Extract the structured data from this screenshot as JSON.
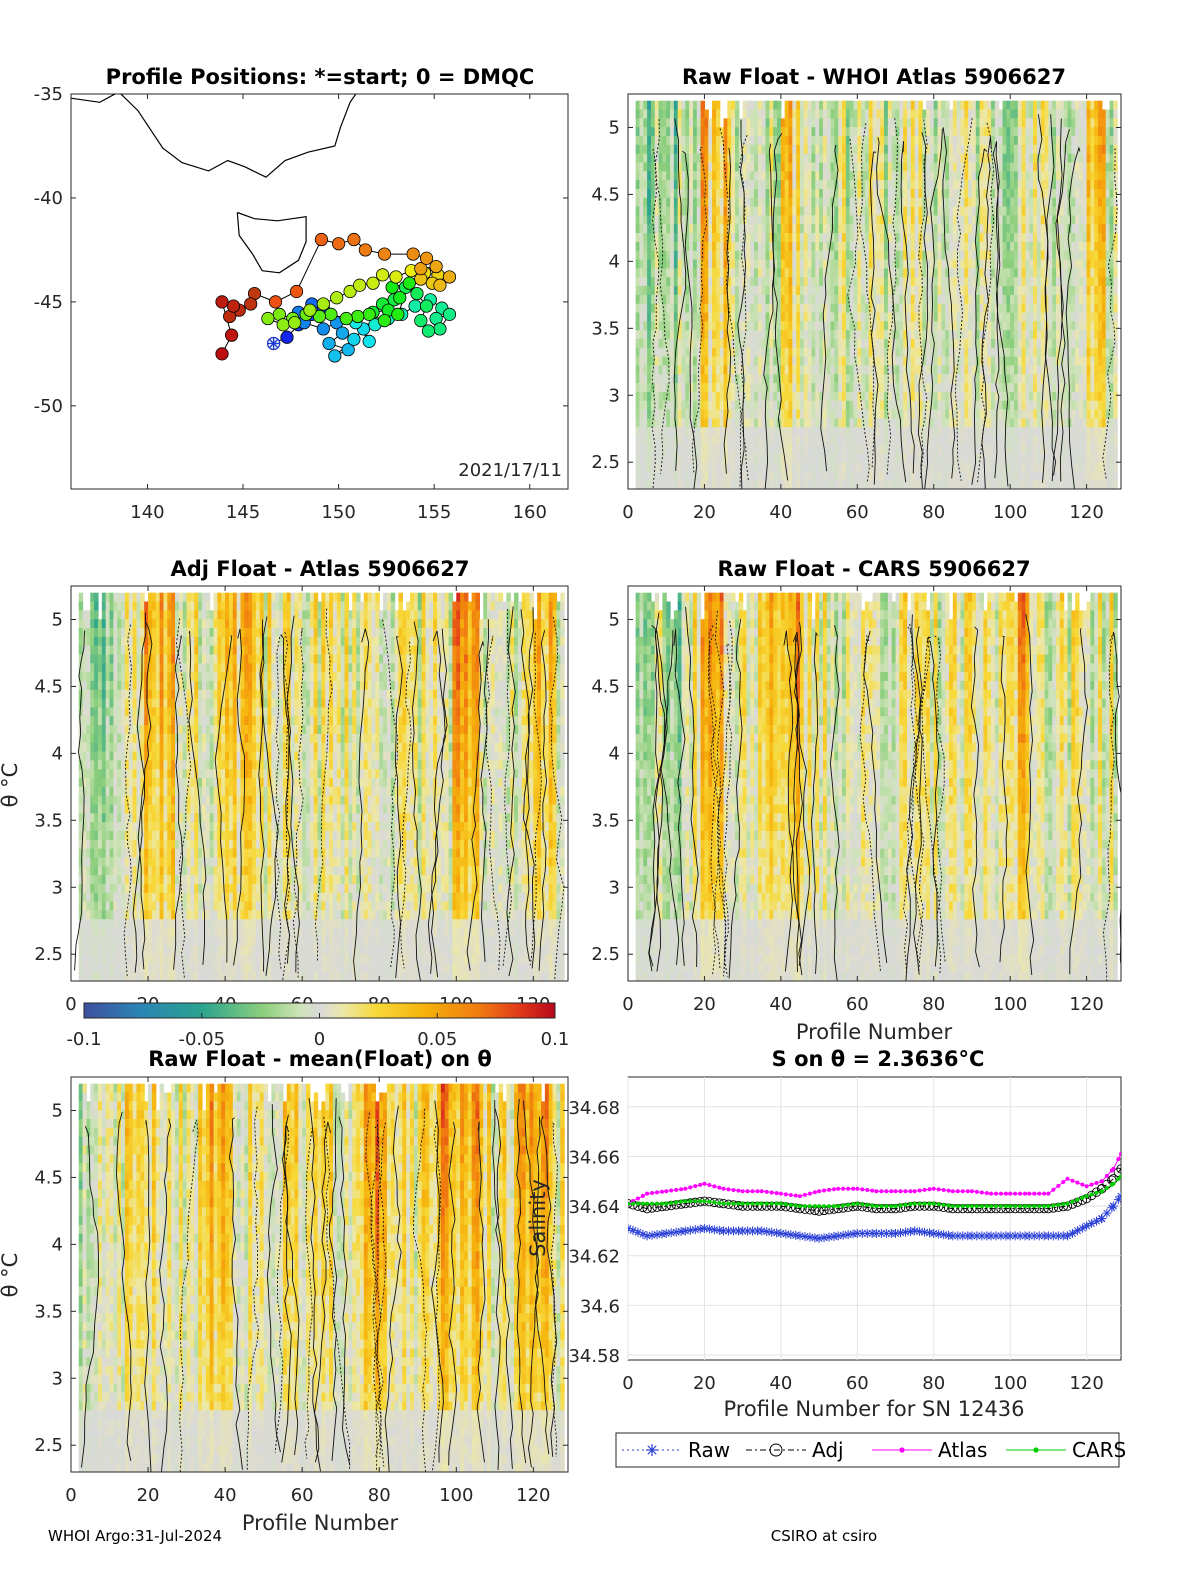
{
  "footer": {
    "left": "WHOI Argo:31-Jul-2024",
    "right": "CSIRO at csiro"
  },
  "colors": {
    "raw": "#2a3fd6",
    "adj": "#000000",
    "atlas": "#ff00ff",
    "cars": "#00cc00",
    "coast": "#000000",
    "axis": "#262626",
    "background": "#ffffff"
  },
  "colorbar": {
    "ticks": [
      "-0.1",
      "-0.05",
      "0",
      "0.05",
      "0.1"
    ],
    "range": [
      -0.1,
      0.1
    ],
    "colormap": "blue-green-gray-yellow-red"
  },
  "chart_data": [
    {
      "id": "map",
      "type": "scatter",
      "title": "Profile Positions: *=start; 0 = DMQC",
      "xticks": [
        "140",
        "145",
        "150",
        "155",
        "160"
      ],
      "yticks": [
        "-35",
        "-40",
        "-45",
        "-50"
      ],
      "xlim": [
        136,
        162
      ],
      "ylim": [
        -54,
        -35
      ],
      "date_label": "2021/17/11",
      "start": {
        "lon": 146.6,
        "lat": -47.0
      },
      "track": [
        {
          "lon": 146.6,
          "lat": -47.0,
          "c": 0.0
        },
        {
          "lon": 147.3,
          "lat": -46.7,
          "c": 0.02
        },
        {
          "lon": 147.9,
          "lat": -46.1,
          "c": 0.04
        },
        {
          "lon": 148.6,
          "lat": -45.6,
          "c": 0.06
        },
        {
          "lon": 149.2,
          "lat": -45.3,
          "c": 0.08
        },
        {
          "lon": 148.6,
          "lat": -45.1,
          "c": 0.1
        },
        {
          "lon": 147.9,
          "lat": -45.5,
          "c": 0.12
        },
        {
          "lon": 148.2,
          "lat": -46.0,
          "c": 0.13
        },
        {
          "lon": 149.2,
          "lat": -46.3,
          "c": 0.14
        },
        {
          "lon": 149.9,
          "lat": -46.0,
          "c": 0.15
        },
        {
          "lon": 150.2,
          "lat": -46.5,
          "c": 0.17
        },
        {
          "lon": 149.5,
          "lat": -47.0,
          "c": 0.18
        },
        {
          "lon": 150.5,
          "lat": -47.3,
          "c": 0.19
        },
        {
          "lon": 149.8,
          "lat": -47.6,
          "c": 0.2
        },
        {
          "lon": 150.8,
          "lat": -46.8,
          "c": 0.22
        },
        {
          "lon": 151.3,
          "lat": -46.3,
          "c": 0.23
        },
        {
          "lon": 151.6,
          "lat": -46.9,
          "c": 0.24
        },
        {
          "lon": 150.9,
          "lat": -46.0,
          "c": 0.26
        },
        {
          "lon": 151.9,
          "lat": -46.1,
          "c": 0.28
        },
        {
          "lon": 152.6,
          "lat": -45.8,
          "c": 0.29
        },
        {
          "lon": 153.3,
          "lat": -45.6,
          "c": 0.31
        },
        {
          "lon": 154.0,
          "lat": -45.2,
          "c": 0.33
        },
        {
          "lon": 154.8,
          "lat": -44.9,
          "c": 0.34
        },
        {
          "lon": 155.4,
          "lat": -45.3,
          "c": 0.35
        },
        {
          "lon": 155.1,
          "lat": -45.8,
          "c": 0.36
        },
        {
          "lon": 155.8,
          "lat": -45.6,
          "c": 0.37
        },
        {
          "lon": 155.3,
          "lat": -46.3,
          "c": 0.38
        },
        {
          "lon": 154.7,
          "lat": -46.4,
          "c": 0.39
        },
        {
          "lon": 154.3,
          "lat": -45.9,
          "c": 0.4
        },
        {
          "lon": 154.6,
          "lat": -45.2,
          "c": 0.41
        },
        {
          "lon": 154.1,
          "lat": -44.6,
          "c": 0.42
        },
        {
          "lon": 153.5,
          "lat": -44.3,
          "c": 0.43
        },
        {
          "lon": 152.9,
          "lat": -44.9,
          "c": 0.44
        },
        {
          "lon": 152.3,
          "lat": -45.1,
          "c": 0.46
        },
        {
          "lon": 151.8,
          "lat": -45.5,
          "c": 0.47
        },
        {
          "lon": 152.6,
          "lat": -45.4,
          "c": 0.48
        },
        {
          "lon": 153.2,
          "lat": -44.8,
          "c": 0.49
        },
        {
          "lon": 152.8,
          "lat": -44.3,
          "c": 0.5
        },
        {
          "lon": 153.7,
          "lat": -44.1,
          "c": 0.51
        },
        {
          "lon": 153.1,
          "lat": -45.6,
          "c": 0.52
        },
        {
          "lon": 152.4,
          "lat": -45.9,
          "c": 0.53
        },
        {
          "lon": 151.6,
          "lat": -45.6,
          "c": 0.54
        },
        {
          "lon": 151.0,
          "lat": -45.7,
          "c": 0.55
        },
        {
          "lon": 150.4,
          "lat": -45.8,
          "c": 0.56
        },
        {
          "lon": 149.6,
          "lat": -45.6,
          "c": 0.57
        },
        {
          "lon": 149.0,
          "lat": -45.7,
          "c": 0.58
        },
        {
          "lon": 148.3,
          "lat": -45.6,
          "c": 0.6
        },
        {
          "lon": 147.6,
          "lat": -45.8,
          "c": 0.61
        },
        {
          "lon": 146.9,
          "lat": -45.6,
          "c": 0.62
        },
        {
          "lon": 146.3,
          "lat": -45.8,
          "c": 0.63
        },
        {
          "lon": 147.1,
          "lat": -46.1,
          "c": 0.64
        },
        {
          "lon": 147.7,
          "lat": -46.0,
          "c": 0.65
        },
        {
          "lon": 148.5,
          "lat": -45.4,
          "c": 0.66
        },
        {
          "lon": 149.2,
          "lat": -45.1,
          "c": 0.67
        },
        {
          "lon": 149.9,
          "lat": -44.8,
          "c": 0.68
        },
        {
          "lon": 150.6,
          "lat": -44.5,
          "c": 0.69
        },
        {
          "lon": 151.1,
          "lat": -44.2,
          "c": 0.7
        },
        {
          "lon": 151.8,
          "lat": -44.1,
          "c": 0.71
        },
        {
          "lon": 152.3,
          "lat": -43.7,
          "c": 0.72
        },
        {
          "lon": 153.0,
          "lat": -43.8,
          "c": 0.73
        },
        {
          "lon": 153.8,
          "lat": -43.5,
          "c": 0.75
        },
        {
          "lon": 154.5,
          "lat": -43.6,
          "c": 0.77
        },
        {
          "lon": 155.2,
          "lat": -43.7,
          "c": 0.78
        },
        {
          "lon": 154.9,
          "lat": -44.1,
          "c": 0.79
        },
        {
          "lon": 154.3,
          "lat": -43.9,
          "c": 0.8
        },
        {
          "lon": 155.3,
          "lat": -44.2,
          "c": 0.81
        },
        {
          "lon": 155.8,
          "lat": -43.8,
          "c": 0.82
        },
        {
          "lon": 155.1,
          "lat": -43.3,
          "c": 0.83
        },
        {
          "lon": 154.3,
          "lat": -43.4,
          "c": 0.84
        },
        {
          "lon": 154.6,
          "lat": -42.9,
          "c": 0.85
        },
        {
          "lon": 153.9,
          "lat": -42.7,
          "c": 0.86
        },
        {
          "lon": 152.4,
          "lat": -42.7,
          "c": 0.87
        },
        {
          "lon": 151.4,
          "lat": -42.5,
          "c": 0.88
        },
        {
          "lon": 150.8,
          "lat": -42.0,
          "c": 0.89
        },
        {
          "lon": 150.0,
          "lat": -42.2,
          "c": 0.9
        },
        {
          "lon": 149.1,
          "lat": -42.0,
          "c": 0.91
        },
        {
          "lon": 147.8,
          "lat": -44.5,
          "c": 0.92
        },
        {
          "lon": 146.7,
          "lat": -45.0,
          "c": 0.93
        },
        {
          "lon": 145.6,
          "lat": -44.6,
          "c": 0.94
        },
        {
          "lon": 145.4,
          "lat": -45.1,
          "c": 0.95
        },
        {
          "lon": 144.8,
          "lat": -45.4,
          "c": 0.96
        },
        {
          "lon": 144.3,
          "lat": -45.7,
          "c": 0.96
        },
        {
          "lon": 144.5,
          "lat": -45.2,
          "c": 0.97
        },
        {
          "lon": 143.9,
          "lat": -45.0,
          "c": 0.98
        },
        {
          "lon": 144.4,
          "lat": -46.6,
          "c": 0.99
        },
        {
          "lon": 143.9,
          "lat": -47.5,
          "c": 1.0
        }
      ],
      "coast": [
        [
          136,
          -35.2
        ],
        [
          137.5,
          -35.4
        ],
        [
          138.5,
          -34.9
        ],
        [
          139.5,
          -35.8
        ],
        [
          140.8,
          -37.6
        ],
        [
          141.8,
          -38.3
        ],
        [
          143.2,
          -38.7
        ],
        [
          144.2,
          -38.2
        ],
        [
          145.1,
          -38.5
        ],
        [
          146.2,
          -39.0
        ],
        [
          147.2,
          -38.2
        ],
        [
          148.4,
          -37.8
        ],
        [
          149.8,
          -37.5
        ],
        [
          150.1,
          -36.6
        ],
        [
          150.6,
          -35.4
        ],
        [
          150.9,
          -35.0
        ]
      ],
      "tasmania": [
        [
          144.7,
          -40.7
        ],
        [
          145.6,
          -41.0
        ],
        [
          146.8,
          -41.1
        ],
        [
          148.3,
          -40.9
        ],
        [
          148.3,
          -42.1
        ],
        [
          147.9,
          -43.0
        ],
        [
          146.9,
          -43.6
        ],
        [
          146.0,
          -43.5
        ],
        [
          145.5,
          -42.7
        ],
        [
          144.8,
          -41.8
        ],
        [
          144.7,
          -40.7
        ]
      ]
    },
    {
      "id": "p1",
      "type": "heatmap",
      "title": "Raw Float - WHOI Atlas  5906627",
      "xticks": [
        "0",
        "20",
        "40",
        "60",
        "80",
        "100",
        "120"
      ],
      "yticks": [
        "5",
        "4.5",
        "4",
        "3.5",
        "3",
        "2.5"
      ],
      "xlim": [
        0,
        129
      ],
      "ylim": [
        2.3,
        5.25
      ],
      "seed": 11,
      "bias": 0.0,
      "warm": [
        [
          20,
          3
        ],
        [
          40,
          2
        ],
        [
          120,
          2
        ]
      ]
    },
    {
      "id": "p2",
      "type": "heatmap",
      "title": "Adj Float - Atlas  5906627",
      "xticks": [
        "0",
        "20",
        "40",
        "60",
        "80",
        "100",
        "120"
      ],
      "yticks": [
        "5",
        "4.5",
        "4",
        "3.5",
        "3",
        "2.5"
      ],
      "ylabel": "θ °C",
      "xlim": [
        0,
        129
      ],
      "ylim": [
        2.3,
        5.25
      ],
      "seed": 23,
      "bias": 0.008,
      "warm": [
        [
          20,
          4
        ],
        [
          40,
          4
        ],
        [
          100,
          3
        ],
        [
          120,
          2
        ]
      ]
    },
    {
      "id": "p3",
      "type": "heatmap",
      "title": "Raw Float - CARS  5906627",
      "xticks": [
        "0",
        "20",
        "40",
        "60",
        "80",
        "100",
        "120"
      ],
      "yticks": [
        "5",
        "4.5",
        "4",
        "3.5",
        "3",
        "2.5"
      ],
      "xlabel": "Profile Number",
      "xlim": [
        0,
        129
      ],
      "ylim": [
        2.3,
        5.25
      ],
      "seed": 37,
      "bias": 0.006,
      "warm": [
        [
          20,
          3
        ],
        [
          38,
          4
        ],
        [
          100,
          3
        ]
      ]
    },
    {
      "id": "p4",
      "type": "heatmap",
      "title": "Raw Float - mean(Float) on θ",
      "xticks": [
        "0",
        "20",
        "40",
        "60",
        "80",
        "100",
        "120"
      ],
      "yticks": [
        "5",
        "4.5",
        "4",
        "3.5",
        "3",
        "2.5"
      ],
      "xlabel": "Profile Number",
      "ylabel": "θ °C",
      "xlim": [
        0,
        129
      ],
      "ylim": [
        2.3,
        5.25
      ],
      "seed": 51,
      "bias": 0.012,
      "warm": [
        [
          35,
          4
        ],
        [
          75,
          4
        ],
        [
          98,
          5
        ],
        [
          117,
          4
        ]
      ]
    },
    {
      "id": "sal",
      "type": "line",
      "title": "S on θ = 2.3636°C",
      "xlabel": "Profile Number for SN 12436",
      "ylabel": "Salinity",
      "xticks": [
        "0",
        "20",
        "40",
        "60",
        "80",
        "100",
        "120"
      ],
      "yticks": [
        "34.68",
        "34.66",
        "34.64",
        "34.62",
        "34.6",
        "34.58"
      ],
      "xlim": [
        0,
        129
      ],
      "ylim": [
        34.578,
        34.692
      ],
      "x": [
        0,
        5,
        10,
        15,
        20,
        25,
        30,
        35,
        40,
        45,
        50,
        55,
        60,
        65,
        70,
        75,
        80,
        85,
        90,
        95,
        100,
        105,
        110,
        115,
        120,
        124,
        127,
        129
      ],
      "series": [
        {
          "name": "Raw",
          "values": [
            34.631,
            34.628,
            34.629,
            34.63,
            34.631,
            34.63,
            34.63,
            34.63,
            34.629,
            34.628,
            34.627,
            34.628,
            34.629,
            34.629,
            34.629,
            34.63,
            34.629,
            34.628,
            34.628,
            34.628,
            34.628,
            34.628,
            34.628,
            34.628,
            34.632,
            34.635,
            34.64,
            34.644
          ]
        },
        {
          "name": "Adj",
          "values": [
            34.641,
            34.639,
            34.64,
            34.641,
            34.642,
            34.641,
            34.64,
            34.64,
            34.64,
            34.639,
            34.638,
            34.639,
            34.64,
            34.639,
            34.639,
            34.64,
            34.64,
            34.639,
            34.639,
            34.639,
            34.639,
            34.639,
            34.639,
            34.64,
            34.643,
            34.647,
            34.651,
            34.655
          ]
        },
        {
          "name": "Atlas",
          "values": [
            34.641,
            34.645,
            34.646,
            34.647,
            34.649,
            34.647,
            34.646,
            34.646,
            34.645,
            34.644,
            34.646,
            34.647,
            34.647,
            34.646,
            34.646,
            34.646,
            34.647,
            34.646,
            34.646,
            34.645,
            34.645,
            34.645,
            34.645,
            34.651,
            34.648,
            34.65,
            34.655,
            34.661
          ]
        },
        {
          "name": "CARS",
          "values": [
            34.641,
            34.641,
            34.641,
            34.642,
            34.642,
            34.641,
            34.641,
            34.641,
            34.641,
            34.64,
            34.64,
            34.64,
            34.641,
            34.64,
            34.64,
            34.641,
            34.641,
            34.64,
            34.64,
            34.64,
            34.64,
            34.64,
            34.64,
            34.641,
            34.644,
            34.646,
            34.649,
            34.652
          ]
        }
      ],
      "legend": [
        "Raw",
        "Adj",
        "Atlas",
        "CARS"
      ],
      "grid": true
    }
  ]
}
